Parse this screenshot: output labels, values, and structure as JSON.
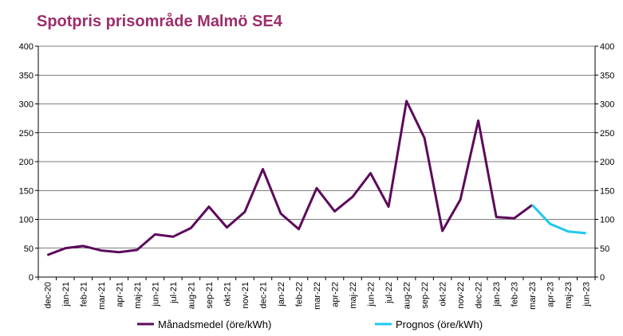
{
  "title": "Spotpris prisområde Malmö SE4",
  "chart_data": {
    "type": "line",
    "title": "Spotpris prisområde Malmö SE4",
    "xlabel": "",
    "ylabel": "",
    "ylim": [
      0,
      400
    ],
    "yticks": [
      0,
      50,
      100,
      150,
      200,
      250,
      300,
      350,
      400
    ],
    "secondary_yaxis": true,
    "grid": true,
    "legend_position": "bottom",
    "categories": [
      "dec-20",
      "jan-21",
      "feb-21",
      "mar-21",
      "apr-21",
      "maj-21",
      "jun-21",
      "jul-21",
      "aug-21",
      "sep-21",
      "okt-21",
      "nov-21",
      "dec-21",
      "jan-22",
      "feb-22",
      "mar-22",
      "apr-22",
      "maj-22",
      "jun-22",
      "jul-22",
      "aug-22",
      "sep-22",
      "okt-22",
      "nov-22",
      "dec-22",
      "jan-23",
      "feb-23",
      "mar-23",
      "apr-23",
      "maj-23",
      "jun-23"
    ],
    "series": [
      {
        "name": "Månadsmedel (öre/kWh)",
        "color": "#5c0a5c",
        "values": [
          38,
          50,
          54,
          46,
          43,
          47,
          74,
          70,
          85,
          122,
          86,
          113,
          187,
          110,
          83,
          154,
          114,
          139,
          180,
          122,
          305,
          241,
          80,
          134,
          271,
          104,
          102,
          125,
          null,
          null,
          null
        ]
      },
      {
        "name": "Prognos (öre/kWh)",
        "color": "#1ec8f0",
        "values": [
          null,
          null,
          null,
          null,
          null,
          null,
          null,
          null,
          null,
          null,
          null,
          null,
          null,
          null,
          null,
          null,
          null,
          null,
          null,
          null,
          null,
          null,
          null,
          null,
          null,
          null,
          null,
          125,
          92,
          79,
          76
        ]
      }
    ]
  }
}
